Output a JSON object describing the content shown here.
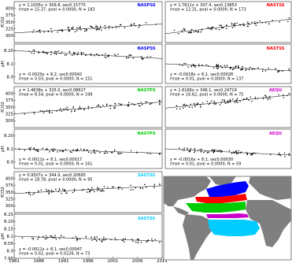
{
  "chart_data": [
    {
      "type": "scatter",
      "region": "NASPSS",
      "region_color": "#0000ff",
      "ylabel": "fCO2",
      "ylim": [
        275,
        425
      ],
      "yticks": [
        300,
        325,
        350,
        375,
        400
      ],
      "xlim": [
        1981,
        2011
      ],
      "slope": 1.1005,
      "intercept": 309.8,
      "stats_line1": "y = 1.1005x + 309.8, sec0.15775",
      "stats_line2": "rmse = 15.37, pval = 0.0000, N = 183"
    },
    {
      "type": "scatter",
      "region": "NASPSS",
      "region_color": "#0000ff",
      "ylabel": "pH",
      "ylim": [
        7.95,
        8.25
      ],
      "yticks": [
        8.0,
        8.1,
        8.2
      ],
      "xlim": [
        1981,
        2011
      ],
      "slope": -0.002,
      "intercept": 8.2,
      "stats_line1": "y = -0.0020x + 8.2, sec0.00042",
      "stats_line2": "rmse = 0.03, pval = 0.0000, N = 151"
    },
    {
      "type": "scatter",
      "region": "NASTSS",
      "region_color": "#ff0000",
      "ylabel": "",
      "ylim": [
        275,
        425
      ],
      "yticks": [],
      "xlim": [
        1981,
        2011
      ],
      "slope": 1.7811,
      "intercept": 307.4,
      "stats_line1": "y = 1.7811x + 307.4, sec0.13853",
      "stats_line2": "rmse = 12.31, pval = 0.0000, N = 173"
    },
    {
      "type": "scatter",
      "region": "NASTSS",
      "region_color": "#ff0000",
      "ylabel": "",
      "ylim": [
        7.95,
        8.25
      ],
      "yticks": [],
      "xlim": [
        1981,
        2011
      ],
      "slope": -0.0018,
      "intercept": 8.1,
      "stats_line1": "y = -0.0018x + 8.1, sec0.00028",
      "stats_line2": "rmse = 0.01, pval = 0.0000, N = 137"
    },
    {
      "type": "scatter",
      "region": "NASTPS",
      "region_color": "#00cc00",
      "ylabel": "fCO2",
      "ylim": [
        275,
        425
      ],
      "yticks": [
        300,
        325,
        350,
        375,
        400
      ],
      "xlim": [
        1981,
        2011
      ],
      "slope": 1.4638,
      "intercept": 325.0,
      "stats_line1": "y = 1.4638x + 325.0, sec0.08627",
      "stats_line2": "rmse = 8.54, pval = 0.0000, N = 199"
    },
    {
      "type": "scatter",
      "region": "NASTPS",
      "region_color": "#00cc00",
      "ylabel": "pH",
      "ylim": [
        7.95,
        8.25
      ],
      "yticks": [
        8.0,
        8.1,
        8.2
      ],
      "xlim": [
        1981,
        2011
      ],
      "slope": -0.0011,
      "intercept": 8.1,
      "stats_line1": "y = -0.0011x + 8.1, sec0.00017",
      "stats_line2": "rmse = 0.01, pval = 0.0000, N = 161"
    },
    {
      "type": "scatter",
      "region": "AEQU",
      "region_color": "#cc00cc",
      "ylabel": "",
      "ylim": [
        275,
        425
      ],
      "yticks": [],
      "xlim": [
        1981,
        2011
      ],
      "slope": 1.6166,
      "intercept": 346.1,
      "stats_line1": "y = 1.6166x + 346.1, sec0.24719",
      "stats_line2": "rmse = 16.62, pval = 0.0000, N = 75"
    },
    {
      "type": "scatter",
      "region": "AEQU",
      "region_color": "#cc00cc",
      "ylabel": "",
      "ylim": [
        7.95,
        8.25
      ],
      "yticks": [],
      "xlim": [
        1981,
        2011
      ],
      "slope": -0.0016,
      "intercept": 8.1,
      "stats_line1": "y = -0.0016x + 8.1, sec0.00030",
      "stats_line2": "rmse = 0.01, pval = 0.0000, N = 59"
    },
    {
      "type": "scatter",
      "region": "SASTSS",
      "region_color": "#00ccff",
      "ylabel": "fCO2",
      "ylim": [
        275,
        425
      ],
      "yticks": [
        300,
        325,
        350,
        375,
        400
      ],
      "xlim": [
        1981,
        2011
      ],
      "slope": 0.9507,
      "intercept": 344.9,
      "stats_line1": "y = 0.9507x + 344.9, sec0.20695",
      "stats_line2": "rmse = 18.78, pval = 0.0000, N = 95"
    },
    {
      "type": "scatter",
      "region": "SASTSS",
      "region_color": "#00ccff",
      "ylabel": "pH",
      "ylim": [
        7.95,
        8.25
      ],
      "yticks": [
        7.95,
        8.0,
        8.05,
        8.1,
        8.15,
        8.2,
        8.25
      ],
      "xlim": [
        1981,
        2011
      ],
      "slope": -0.0011,
      "intercept": 8.1,
      "stats_line1": "y = -0.0011x + 8.1, sec0.00047",
      "stats_line2": "rmse = 0.02, pval = 0.0226, N = 73"
    }
  ],
  "x_tick_labels": [
    "1981",
    "1986",
    "1991",
    "1996",
    "2001",
    "2006",
    "2011"
  ],
  "map": {
    "ocean_color": "#ffffff",
    "land_color": "#7f7f7f",
    "regions": [
      {
        "name": "NASPSS",
        "color": "#0000ff"
      },
      {
        "name": "NASTSS",
        "color": "#ff0000"
      },
      {
        "name": "NASTPS",
        "color": "#00cc00"
      },
      {
        "name": "AEQU",
        "color": "#cc00cc"
      },
      {
        "name": "SASTSS",
        "color": "#00ccff"
      }
    ]
  }
}
